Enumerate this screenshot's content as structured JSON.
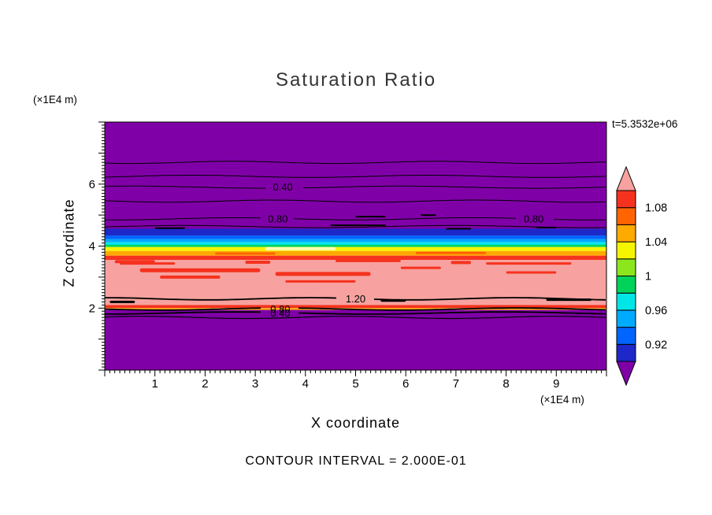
{
  "chart_data": {
    "type": "heatmap",
    "title": "Saturation Ratio",
    "timestamp_label": "t=5.3532e+06",
    "footer": "CONTOUR INTERVAL = 2.000E-01",
    "contour_interval": 0.2,
    "x_axis": {
      "label": "X coordinate",
      "units_label": "(×1E4 m)",
      "range": [
        0,
        10
      ],
      "tick_labels": [
        1,
        2,
        3,
        4,
        5,
        6,
        7,
        8,
        9
      ],
      "minor_step": 0.1
    },
    "z_axis": {
      "label": "Z coordinate",
      "units_label": "(×1E4 m)",
      "range": [
        0,
        8
      ],
      "tick_labels": [
        2,
        4,
        6
      ],
      "minor_step": 0.1
    },
    "palette": {
      "purple": "#8000a8",
      "navy": "#1e28c8",
      "blue": "#0064ff",
      "sky": "#00aaff",
      "cyan": "#00e6e6",
      "green": "#00d25a",
      "ygreen": "#8ce61e",
      "yellow": "#f5f500",
      "orange": "#ffaa00",
      "dorange": "#ff6400",
      "red": "#f5321e",
      "pink": "#f7a2a0",
      "black": "#000000"
    },
    "bands": [
      {
        "color": "purple",
        "z_top": 8.0,
        "z_bottom": 4.56
      },
      {
        "color": "navy",
        "z_top": 4.56,
        "z_bottom": 4.34
      },
      {
        "color": "blue",
        "z_top": 4.34,
        "z_bottom": 4.22
      },
      {
        "color": "sky",
        "z_top": 4.22,
        "z_bottom": 4.12
      },
      {
        "color": "cyan",
        "z_top": 4.12,
        "z_bottom": 4.04
      },
      {
        "color": "green",
        "z_top": 4.04,
        "z_bottom": 3.97
      },
      {
        "color": "yellow",
        "z_top": 3.97,
        "z_bottom": 3.84
      },
      {
        "color": "orange",
        "z_top": 3.84,
        "z_bottom": 3.69
      },
      {
        "color": "red",
        "z_top": 3.69,
        "z_bottom": 3.55
      },
      {
        "color": "pink",
        "z_top": 3.55,
        "z_bottom": 2.1
      },
      {
        "color": "red",
        "z_top": 2.1,
        "z_bottom": 2.0
      },
      {
        "color": "orange",
        "z_top": 2.0,
        "z_bottom": 1.94
      },
      {
        "color": "purple",
        "z_top": 1.94,
        "z_bottom": 0.0
      }
    ],
    "contours": [
      {
        "z": 6.7,
        "width": 1
      },
      {
        "z": 6.25,
        "width": 1
      },
      {
        "z": 5.9,
        "width": 1,
        "labels": [
          {
            "text": "0.40",
            "x": 3.55
          }
        ]
      },
      {
        "z": 5.45,
        "width": 1
      },
      {
        "z": 4.88,
        "width": 1,
        "labels": [
          {
            "text": "0.80",
            "x": 3.45
          },
          {
            "text": "0.80",
            "x": 8.55
          }
        ]
      },
      {
        "z": 4.63,
        "width": 1
      },
      {
        "z": 2.3,
        "width": 1.8,
        "labels": [
          {
            "text": "1.20",
            "x": 5.0
          }
        ]
      },
      {
        "z": 1.97,
        "width": 1.8,
        "labels": [
          {
            "text": "0.80",
            "x": 3.5
          }
        ]
      },
      {
        "z": 1.84,
        "width": 1.8,
        "labels": [
          {
            "text": "0.40",
            "x": 3.5
          }
        ]
      },
      {
        "z": 1.7,
        "width": 1.2
      }
    ],
    "streaks": [
      {
        "x": [
          0.3,
          1.4
        ],
        "z": 3.44,
        "h": 3,
        "color": "red"
      },
      {
        "x": [
          0.7,
          3.1
        ],
        "z": 3.22,
        "h": 5,
        "color": "red"
      },
      {
        "x": [
          1.1,
          2.3
        ],
        "z": 3.0,
        "h": 4,
        "color": "red"
      },
      {
        "x": [
          3.4,
          5.3
        ],
        "z": 3.1,
        "h": 5,
        "color": "red"
      },
      {
        "x": [
          3.6,
          5.0
        ],
        "z": 2.86,
        "h": 3,
        "color": "red"
      },
      {
        "x": [
          5.9,
          6.7
        ],
        "z": 3.3,
        "h": 3,
        "color": "red"
      },
      {
        "x": [
          7.6,
          9.3
        ],
        "z": 3.44,
        "h": 3,
        "color": "red"
      },
      {
        "x": [
          8.0,
          9.0
        ],
        "z": 3.15,
        "h": 3,
        "color": "red"
      },
      {
        "x": [
          4.6,
          5.9
        ],
        "z": 3.52,
        "h": 3,
        "color": "red"
      },
      {
        "x": [
          0.2,
          1.0
        ],
        "z": 3.5,
        "h": 4,
        "color": "red"
      },
      {
        "x": [
          2.8,
          3.3
        ],
        "z": 3.48,
        "h": 4,
        "color": "red"
      },
      {
        "x": [
          6.9,
          7.3
        ],
        "z": 3.47,
        "h": 4,
        "color": "red"
      },
      {
        "x": [
          3.2,
          4.6
        ],
        "z": 3.92,
        "h": 4,
        "color": "#ffffb4"
      },
      {
        "x": [
          2.2,
          3.4
        ],
        "z": 3.76,
        "h": 3,
        "color": "dorange"
      },
      {
        "x": [
          6.2,
          7.6
        ],
        "z": 3.78,
        "h": 3,
        "color": "dorange"
      },
      {
        "x": [
          1.0,
          1.6
        ],
        "z": 4.58,
        "h": 2,
        "color": "black"
      },
      {
        "x": [
          4.5,
          5.6
        ],
        "z": 4.67,
        "h": 2,
        "color": "black"
      },
      {
        "x": [
          6.8,
          7.3
        ],
        "z": 4.56,
        "h": 2,
        "color": "black"
      },
      {
        "x": [
          8.6,
          9.0
        ],
        "z": 4.6,
        "h": 2,
        "color": "black"
      },
      {
        "x": [
          5.0,
          5.6
        ],
        "z": 4.95,
        "h": 2,
        "color": "black"
      },
      {
        "x": [
          6.3,
          6.6
        ],
        "z": 5.0,
        "h": 2,
        "color": "black"
      },
      {
        "x": [
          5.5,
          6.0
        ],
        "z": 2.24,
        "h": 3,
        "color": "black"
      },
      {
        "x": [
          8.8,
          9.7
        ],
        "z": 2.27,
        "h": 3,
        "color": "black"
      },
      {
        "x": [
          0.1,
          0.6
        ],
        "z": 2.2,
        "h": 3,
        "color": "black"
      }
    ],
    "colorbar": {
      "under_color": "purple",
      "over_color": "pink",
      "colors": [
        "navy",
        "blue",
        "sky",
        "cyan",
        "green",
        "ygreen",
        "yellow",
        "orange",
        "dorange",
        "red"
      ],
      "level_min": 0.9,
      "level_max": 1.1,
      "level_step": 0.02,
      "labels": [
        {
          "text": "0.92",
          "boundary": 1
        },
        {
          "text": "0.96",
          "boundary": 3
        },
        {
          "text": "1",
          "boundary": 5
        },
        {
          "text": "1.04",
          "boundary": 7
        },
        {
          "text": "1.08",
          "boundary": 9
        }
      ]
    }
  }
}
